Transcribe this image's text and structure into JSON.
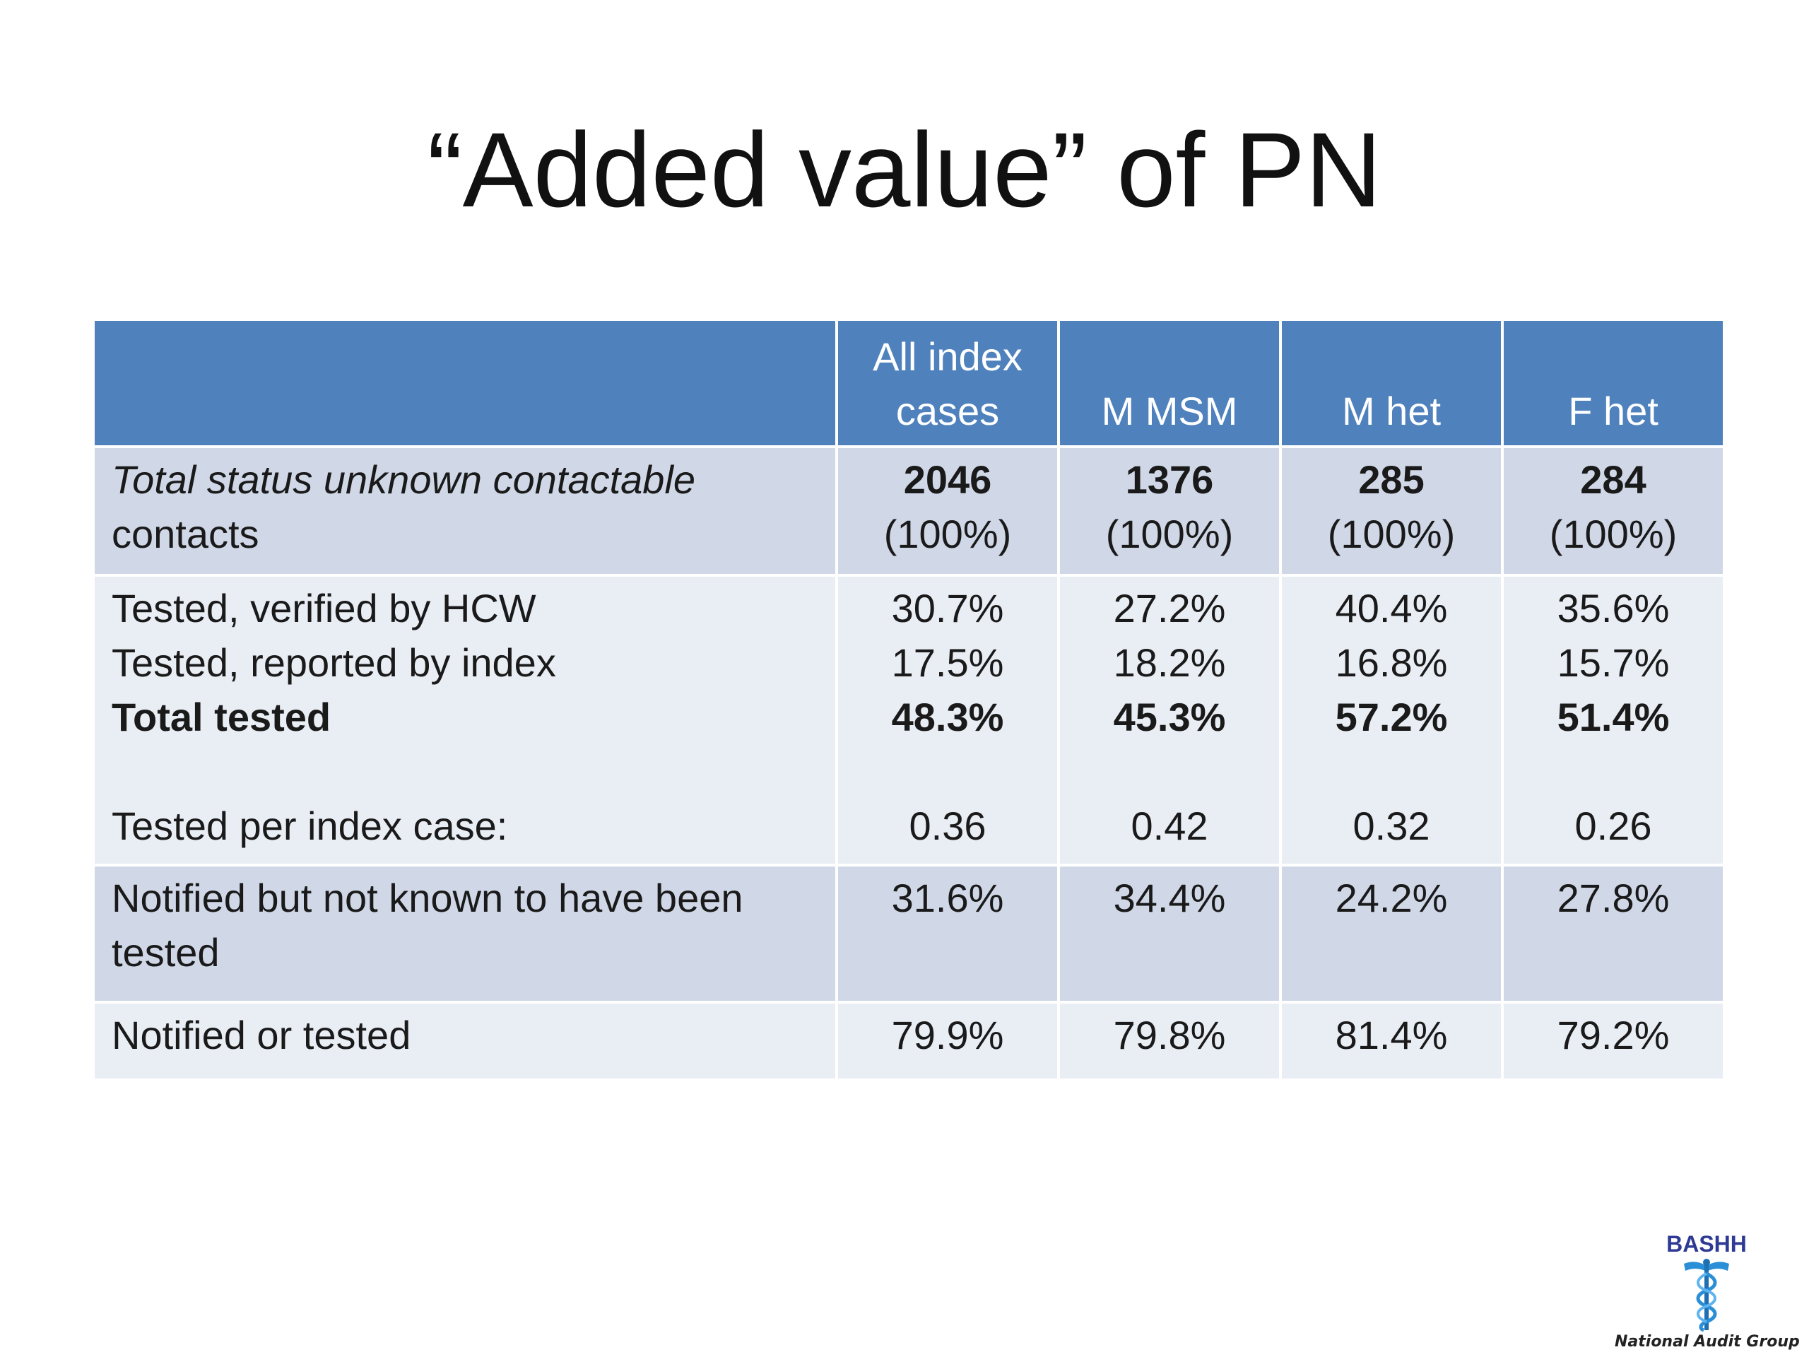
{
  "slide": {
    "title": "“Added value” of PN"
  },
  "table": {
    "headers": [
      {
        "lines": []
      },
      {
        "lines": [
          "All index",
          "cases"
        ]
      },
      {
        "lines": [
          "M MSM"
        ]
      },
      {
        "lines": [
          "M het"
        ]
      },
      {
        "lines": [
          "F het"
        ]
      }
    ],
    "row_unknown": {
      "label_line1": "Total status unknown contactable",
      "label_line2": "contacts",
      "cells": [
        {
          "count": "2046",
          "pct": "(100%)"
        },
        {
          "count": "1376",
          "pct": "(100%)"
        },
        {
          "count": "285",
          "pct": "(100%)"
        },
        {
          "count": "284",
          "pct": "(100%)"
        }
      ]
    },
    "row_tested": {
      "labels": {
        "verified": "Tested, verified by HCW",
        "reported": "Tested, reported by index",
        "total": "Total tested",
        "per_index": "Tested per index case:"
      },
      "cells": [
        {
          "verified": "30.7%",
          "reported": "17.5%",
          "total": "48.3%",
          "per_index": "0.36"
        },
        {
          "verified": "27.2%",
          "reported": "18.2%",
          "total": "45.3%",
          "per_index": "0.42"
        },
        {
          "verified": "40.4%",
          "reported": "16.8%",
          "total": "57.2%",
          "per_index": "0.32"
        },
        {
          "verified": "35.6%",
          "reported": "15.7%",
          "total": "51.4%",
          "per_index": "0.26"
        }
      ]
    },
    "row_notified": {
      "label": "Notified but not known to have been tested",
      "values": [
        "31.6%",
        "34.4%",
        "24.2%",
        "27.8%"
      ]
    },
    "row_total": {
      "label": "Notified or tested",
      "values": [
        "79.9%",
        "79.8%",
        "81.4%",
        "79.2%"
      ]
    }
  },
  "logo": {
    "name": "BASHH",
    "tagline": "National Audit Group"
  },
  "colors": {
    "header_bg": "#4f81bd",
    "row_dark": "#d0d8e8",
    "row_light": "#e9edf4"
  }
}
